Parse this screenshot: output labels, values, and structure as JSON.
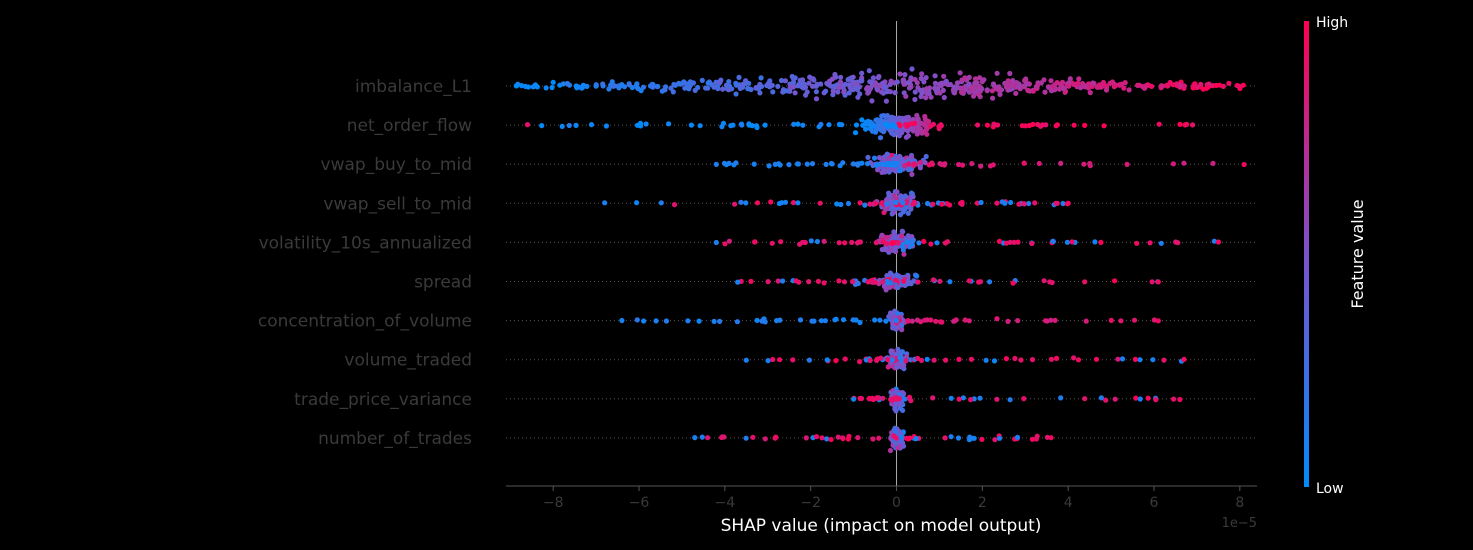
{
  "chart_data": {
    "type": "scatter",
    "subtype": "shap_beeswarm",
    "xlabel": "SHAP value (impact on model output)",
    "x_offset_label": "1e−5",
    "xlim": [
      -9.1,
      8.4
    ],
    "xticks": [
      {
        "value": -8,
        "label": "−8"
      },
      {
        "value": -6,
        "label": "−6"
      },
      {
        "value": -4,
        "label": "−4"
      },
      {
        "value": -2,
        "label": "−2"
      },
      {
        "value": 0,
        "label": "0"
      },
      {
        "value": 2,
        "label": "2"
      },
      {
        "value": 4,
        "label": "4"
      },
      {
        "value": 6,
        "label": "6"
      },
      {
        "value": 8,
        "label": "8"
      }
    ],
    "colorbar": {
      "title": "Feature value",
      "high_label": "High",
      "low_label": "Low",
      "low_color": "#008bfb",
      "high_color": "#ff0052"
    },
    "features": [
      {
        "name": "imbalance_L1",
        "min": -9.0,
        "max": 8.2,
        "core": 6.0,
        "density": 1.0,
        "trend": 1,
        "profile": "spread"
      },
      {
        "name": "net_order_flow",
        "min": -8.6,
        "max": 6.9,
        "core": 0.85,
        "density": 0.85,
        "trend": 1,
        "profile": "dense"
      },
      {
        "name": "vwap_buy_to_mid",
        "min": -4.2,
        "max": 8.1,
        "core": 0.6,
        "density": 0.7,
        "trend": 0,
        "profile": "dense"
      },
      {
        "name": "vwap_sell_to_mid",
        "min": -6.8,
        "max": 4.0,
        "core": 0.45,
        "density": 0.65,
        "trend": -1,
        "profile": "dense"
      },
      {
        "name": "volatility_10s_annualized",
        "min": -4.2,
        "max": 7.5,
        "core": 0.4,
        "density": 0.55,
        "trend": -1,
        "profile": "dense"
      },
      {
        "name": "spread",
        "min": -3.7,
        "max": 6.1,
        "core": 0.5,
        "density": 0.4,
        "trend": -1,
        "profile": "cluster"
      },
      {
        "name": "concentration_of_volume",
        "min": -6.4,
        "max": 6.1,
        "core": 0.15,
        "density": 0.6,
        "trend": 0,
        "profile": "dense"
      },
      {
        "name": "volume_traded",
        "min": -3.5,
        "max": 6.7,
        "core": 0.2,
        "density": 0.55,
        "trend": -1,
        "profile": "dense"
      },
      {
        "name": "trade_price_variance",
        "min": -1.0,
        "max": 6.6,
        "core": 0.15,
        "density": 0.45,
        "trend": -1,
        "profile": "dense"
      },
      {
        "name": "number_of_trades",
        "min": -4.7,
        "max": 3.6,
        "core": 0.15,
        "density": 0.45,
        "trend": -1,
        "profile": "dense"
      }
    ]
  }
}
